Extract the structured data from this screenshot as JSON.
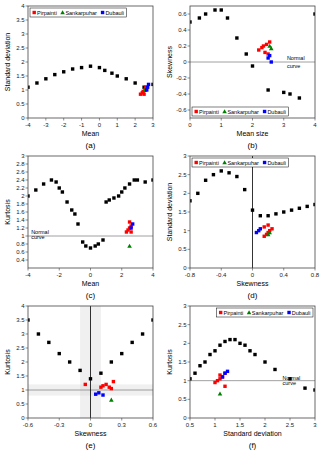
{
  "chart_data": [
    {
      "type": "scatter",
      "title": "(a)",
      "xlabel": "Mean",
      "ylabel": "Standard deviation",
      "xlim": [
        -4,
        3
      ],
      "ylim": [
        0.0,
        4.0
      ],
      "xticks": [
        -4,
        -3,
        -2,
        -1,
        0,
        1,
        2,
        3
      ],
      "yticks": [
        0.0,
        0.5,
        1.0,
        1.5,
        2.0,
        2.5,
        3.0,
        3.5,
        4.0
      ],
      "grid": false,
      "legend": "upper left",
      "series": [
        {
          "color": "black",
          "marker": "square",
          "x": [
            -4.0,
            -3.5,
            -3.0,
            -2.5,
            -2.0,
            -1.5,
            -1.0,
            -0.5,
            0.0,
            0.3,
            0.7,
            1.0,
            1.5,
            2.0,
            2.5,
            3.0
          ],
          "values": [
            1.1,
            1.25,
            1.4,
            1.55,
            1.65,
            1.75,
            1.8,
            1.85,
            1.8,
            1.7,
            1.6,
            1.5,
            1.4,
            1.25,
            1.1,
            1.2
          ]
        },
        {
          "name": "Pirpainti",
          "color": "red",
          "marker": "square",
          "x": [
            2.3,
            2.4,
            2.45,
            2.5,
            2.55,
            2.6,
            2.6
          ],
          "values": [
            0.85,
            0.9,
            0.95,
            0.85,
            1.0,
            1.05,
            1.1
          ]
        },
        {
          "name": "Sankarpuhar",
          "color": "green",
          "marker": "triangle",
          "x": [
            2.55
          ],
          "values": [
            1.0
          ]
        },
        {
          "name": "Dubauli",
          "color": "blue",
          "marker": "square",
          "x": [
            2.65,
            2.7,
            2.75
          ],
          "values": [
            1.0,
            1.1,
            1.2
          ]
        }
      ]
    },
    {
      "type": "scatter",
      "title": "(b)",
      "xlabel": "Mean size",
      "ylabel": "Skewness",
      "xlim": [
        0,
        4
      ],
      "ylim": [
        -0.7,
        0.7
      ],
      "xticks": [
        0,
        1,
        2,
        3,
        4
      ],
      "yticks": [
        -0.6,
        -0.4,
        -0.2,
        0.0,
        0.2,
        0.4,
        0.6
      ],
      "grid": false,
      "legend": "lower left",
      "hline": 0.0,
      "annotations": [
        {
          "text": "Normal",
          "x": 3.1,
          "y": 0.03
        },
        {
          "text": "curve",
          "x": 3.1,
          "y": -0.07
        }
      ],
      "series": [
        {
          "color": "black",
          "marker": "square",
          "x": [
            0.0,
            0.3,
            0.5,
            0.8,
            1.0,
            1.2,
            1.5,
            1.8,
            2.0,
            2.5,
            3.0,
            3.2,
            3.5,
            4.0
          ],
          "values": [
            0.5,
            0.55,
            0.6,
            0.65,
            0.65,
            0.55,
            0.3,
            0.1,
            -0.05,
            -0.35,
            -0.38,
            -0.4,
            -0.45,
            0.6
          ]
        },
        {
          "name": "Pirpainti",
          "color": "red",
          "marker": "square",
          "x": [
            2.2,
            2.3,
            2.35,
            2.4,
            2.45,
            2.5,
            2.55
          ],
          "values": [
            0.15,
            0.18,
            0.2,
            0.12,
            0.22,
            0.1,
            0.25
          ]
        },
        {
          "name": "Sankarpuhar",
          "color": "green",
          "marker": "triangle",
          "x": [
            2.55,
            2.6
          ],
          "values": [
            0.2,
            0.17
          ]
        },
        {
          "name": "Dubauli",
          "color": "blue",
          "marker": "square",
          "x": [
            2.5,
            2.55,
            2.6
          ],
          "values": [
            0.05,
            0.08,
            0.0
          ]
        }
      ]
    },
    {
      "type": "scatter",
      "title": "(c)",
      "xlabel": "Mean",
      "ylabel": "Kurtosis",
      "xlim": [
        -4,
        4
      ],
      "ylim": [
        0.2,
        3.0
      ],
      "xticks": [
        -4,
        -2,
        0,
        2,
        4
      ],
      "yticks": [
        0.4,
        0.6,
        0.8,
        1.0,
        1.2,
        1.4,
        1.6,
        1.8,
        2.0,
        2.2,
        2.4,
        2.6,
        2.8,
        3.0
      ],
      "grid": false,
      "hline": 1.0,
      "annotations": [
        {
          "text": "Normal",
          "x": -3.8,
          "y": 1.06
        },
        {
          "text": "curve",
          "x": -3.8,
          "y": 0.92
        }
      ],
      "series": [
        {
          "color": "black",
          "marker": "square",
          "x": [
            -4.0,
            -3.5,
            -3.0,
            -2.5,
            -2.2,
            -2.0,
            -1.8,
            -1.5,
            -1.2,
            -1.0,
            -0.8,
            -0.5,
            -0.3,
            0.0,
            0.3,
            0.5,
            0.8,
            1.0,
            1.2,
            1.5,
            1.8,
            2.0,
            2.2,
            2.5,
            2.8,
            3.0,
            3.5,
            4.0
          ],
          "values": [
            2.0,
            2.15,
            2.3,
            2.4,
            2.35,
            2.2,
            2.1,
            1.85,
            1.65,
            1.55,
            1.3,
            0.85,
            0.75,
            0.7,
            0.75,
            0.8,
            0.9,
            1.85,
            1.9,
            1.95,
            2.0,
            2.1,
            2.2,
            2.3,
            2.4,
            2.4,
            2.35,
            2.4
          ]
        },
        {
          "name": "Pirpainti",
          "color": "red",
          "marker": "square",
          "x": [
            2.3,
            2.4,
            2.5,
            2.5,
            2.6,
            2.6
          ],
          "values": [
            1.1,
            1.15,
            1.2,
            1.35,
            1.1,
            1.25
          ]
        },
        {
          "name": "Sankarpuhar",
          "color": "green",
          "marker": "triangle",
          "x": [
            2.5
          ],
          "values": [
            0.75
          ]
        },
        {
          "name": "Dubauli",
          "color": "blue",
          "marker": "square",
          "x": [
            2.6,
            2.7
          ],
          "values": [
            1.2,
            1.3
          ]
        }
      ]
    },
    {
      "type": "scatter",
      "title": "(d)",
      "xlabel": "Skewness",
      "ylabel": "Standard deviation",
      "xlim": [
        -0.8,
        0.8
      ],
      "ylim": [
        0.0,
        3.0
      ],
      "xticks": [
        -0.8,
        -0.4,
        0,
        0.4,
        0.8
      ],
      "yticks": [
        0.0,
        0.5,
        1.0,
        1.5,
        2.0,
        2.5,
        3.0
      ],
      "grid": false,
      "legend": "upper left",
      "vline": 0.0,
      "series": [
        {
          "color": "black",
          "marker": "square",
          "x": [
            -0.8,
            -0.7,
            -0.6,
            -0.5,
            -0.4,
            -0.3,
            -0.2,
            -0.1,
            0.0,
            0.1,
            0.2,
            0.3,
            0.4,
            0.5,
            0.6,
            0.7,
            0.8
          ],
          "values": [
            1.8,
            2.0,
            2.35,
            2.5,
            2.6,
            2.55,
            2.45,
            2.1,
            1.55,
            1.4,
            1.4,
            1.45,
            1.5,
            1.55,
            1.6,
            1.65,
            1.7
          ]
        },
        {
          "name": "Pirpainti",
          "color": "red",
          "marker": "square",
          "x": [
            0.15,
            0.18,
            0.2,
            0.22,
            0.25,
            0.15,
            0.2
          ],
          "values": [
            0.85,
            0.9,
            0.95,
            1.0,
            1.05,
            1.1,
            1.15
          ]
        },
        {
          "name": "Sankarpuhar",
          "color": "green",
          "marker": "triangle",
          "x": [
            0.2,
            0.22
          ],
          "values": [
            0.9,
            0.95
          ]
        },
        {
          "name": "Dubauli",
          "color": "blue",
          "marker": "square",
          "x": [
            0.05,
            0.08,
            0.1
          ],
          "values": [
            0.95,
            1.0,
            1.05
          ]
        }
      ]
    },
    {
      "type": "scatter",
      "title": "(e)",
      "xlabel": "Skewness",
      "ylabel": "Kurtosis",
      "xlim": [
        -0.6,
        0.6
      ],
      "ylim": [
        0.0,
        4.0
      ],
      "xticks": [
        -0.6,
        -0.3,
        0,
        0.3,
        0.6
      ],
      "yticks": [
        0.0,
        0.5,
        1.0,
        1.5,
        2.0,
        2.5,
        3.0,
        3.5,
        4.0
      ],
      "grid": false,
      "hline": 1.0,
      "vline": 0.0,
      "vband": [
        -0.1,
        0.1
      ],
      "hband": [
        0.8,
        1.2
      ],
      "series": [
        {
          "color": "black",
          "marker": "square",
          "x": [
            -0.6,
            -0.5,
            -0.4,
            -0.3,
            -0.2,
            -0.1,
            0.0,
            0.1,
            0.2,
            0.3,
            0.4,
            0.5,
            0.6
          ],
          "values": [
            3.5,
            3.0,
            2.7,
            2.3,
            2.0,
            1.7,
            1.4,
            1.6,
            2.0,
            2.3,
            2.7,
            3.0,
            3.5
          ]
        },
        {
          "name": "Pirpainti",
          "color": "red",
          "marker": "square",
          "x": [
            -0.05,
            0.1,
            0.12,
            0.15,
            0.18,
            0.2,
            0.22
          ],
          "values": [
            1.2,
            1.1,
            1.15,
            1.2,
            1.1,
            1.05,
            1.3
          ]
        },
        {
          "name": "Sankarpuhar",
          "color": "green",
          "marker": "triangle",
          "x": [
            0.2
          ],
          "values": [
            0.65
          ]
        },
        {
          "name": "Dubauli",
          "color": "blue",
          "marker": "square",
          "x": [
            0.05,
            0.08,
            0.12
          ],
          "values": [
            0.85,
            0.9,
            0.82
          ]
        }
      ]
    },
    {
      "type": "scatter",
      "title": "(f)",
      "xlabel": "Standard deviation",
      "ylabel": "Kurtosis",
      "xlim": [
        0.5,
        3.0
      ],
      "ylim": [
        0.0,
        3.0
      ],
      "xticks": [
        0.5,
        1,
        1.5,
        2,
        2.5,
        3
      ],
      "yticks": [
        0.0,
        0.5,
        1.0,
        1.5,
        2.0,
        2.5,
        3.0
      ],
      "grid": false,
      "legend": "upper right",
      "hline": 1.0,
      "annotations": [
        {
          "text": "Normal",
          "x": 2.35,
          "y": 1.03
        },
        {
          "text": "curve",
          "x": 2.35,
          "y": 0.89
        }
      ],
      "series": [
        {
          "color": "black",
          "marker": "square",
          "x": [
            0.5,
            0.6,
            0.7,
            0.8,
            0.9,
            1.0,
            1.1,
            1.2,
            1.3,
            1.4,
            1.5,
            1.6,
            1.7,
            1.8,
            2.0,
            2.2,
            2.5,
            2.8,
            3.0
          ],
          "values": [
            1.05,
            1.2,
            1.4,
            1.5,
            1.7,
            1.8,
            1.95,
            2.05,
            2.1,
            2.1,
            2.0,
            1.95,
            1.8,
            1.7,
            1.5,
            1.3,
            1.05,
            0.8,
            0.75
          ]
        },
        {
          "name": "Pirpainti",
          "color": "red",
          "marker": "square",
          "x": [
            1.0,
            1.05,
            1.1,
            1.1,
            1.15,
            1.2,
            1.2
          ],
          "values": [
            0.95,
            1.0,
            1.05,
            1.15,
            1.1,
            1.2,
            0.85
          ]
        },
        {
          "name": "Sankarpuhar",
          "color": "green",
          "marker": "triangle",
          "x": [
            1.1
          ],
          "values": [
            0.65
          ]
        },
        {
          "name": "Dubauli",
          "color": "blue",
          "marker": "square",
          "x": [
            1.15,
            1.2,
            1.25
          ],
          "values": [
            1.1,
            1.2,
            1.25
          ]
        }
      ]
    }
  ]
}
